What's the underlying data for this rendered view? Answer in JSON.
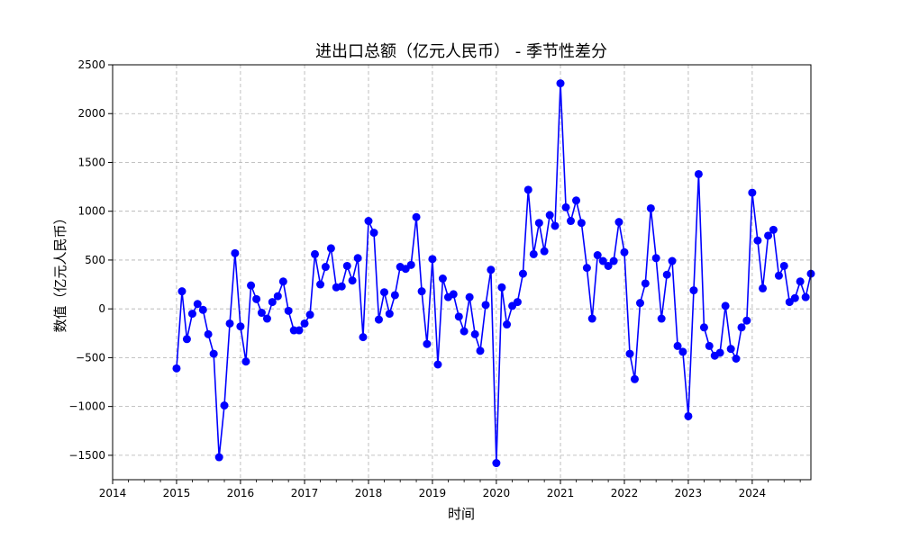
{
  "chart_data": {
    "type": "line",
    "title": "进出口总额（亿元人民币） - 季节性差分",
    "xlabel": "时间",
    "ylabel": "数值（亿元人民币）",
    "xlim": [
      "2014-01-01",
      "2024-12-01"
    ],
    "ylim": [
      -1750,
      2500
    ],
    "x_ticks": [
      "2014",
      "2015",
      "2016",
      "2017",
      "2018",
      "2019",
      "2020",
      "2021",
      "2022",
      "2023",
      "2024"
    ],
    "y_ticks": [
      -1500,
      -1000,
      -500,
      0,
      500,
      1000,
      1500,
      2000,
      2500
    ],
    "grid": true,
    "colors": {
      "series": "#0000ff",
      "grid": "#b0b0b0"
    },
    "series": [
      {
        "marker": "circle",
        "x": [
          "2015-01",
          "2015-02",
          "2015-03",
          "2015-04",
          "2015-05",
          "2015-06",
          "2015-07",
          "2015-08",
          "2015-09",
          "2015-10",
          "2015-11",
          "2015-12",
          "2016-01",
          "2016-02",
          "2016-03",
          "2016-04",
          "2016-05",
          "2016-06",
          "2016-07",
          "2016-08",
          "2016-09",
          "2016-10",
          "2016-11",
          "2016-12",
          "2017-01",
          "2017-02",
          "2017-03",
          "2017-04",
          "2017-05",
          "2017-06",
          "2017-07",
          "2017-08",
          "2017-09",
          "2017-10",
          "2017-11",
          "2017-12",
          "2018-01",
          "2018-02",
          "2018-03",
          "2018-04",
          "2018-05",
          "2018-06",
          "2018-07",
          "2018-08",
          "2018-09",
          "2018-10",
          "2018-11",
          "2018-12",
          "2019-01",
          "2019-02",
          "2019-03",
          "2019-04",
          "2019-05",
          "2019-06",
          "2019-07",
          "2019-08",
          "2019-09",
          "2019-10",
          "2019-11",
          "2019-12",
          "2020-01",
          "2020-02",
          "2020-03",
          "2020-04",
          "2020-05",
          "2020-06",
          "2020-07",
          "2020-08",
          "2020-09",
          "2020-10",
          "2020-11",
          "2020-12",
          "2021-01",
          "2021-02",
          "2021-03",
          "2021-04",
          "2021-05",
          "2021-06",
          "2021-07",
          "2021-08",
          "2021-09",
          "2021-10",
          "2021-11",
          "2021-12",
          "2022-01",
          "2022-02",
          "2022-03",
          "2022-04",
          "2022-05",
          "2022-06",
          "2022-07",
          "2022-08",
          "2022-09",
          "2022-10",
          "2022-11",
          "2022-12",
          "2023-01",
          "2023-02",
          "2023-03",
          "2023-04",
          "2023-05",
          "2023-06",
          "2023-07",
          "2023-08",
          "2023-09",
          "2023-10",
          "2023-11",
          "2023-12",
          "2024-01",
          "2024-02",
          "2024-03",
          "2024-04",
          "2024-05",
          "2024-06",
          "2024-07",
          "2024-08",
          "2024-09",
          "2024-10",
          "2024-11",
          "2024-12"
        ],
        "y": [
          -610,
          180,
          -310,
          -50,
          50,
          -10,
          -260,
          -460,
          -1520,
          -990,
          -150,
          570,
          -180,
          -540,
          240,
          100,
          -40,
          -100,
          70,
          130,
          280,
          -20,
          -220,
          -220,
          -150,
          -60,
          560,
          250,
          430,
          620,
          220,
          230,
          440,
          290,
          520,
          -290,
          900,
          780,
          -110,
          170,
          -50,
          140,
          430,
          410,
          450,
          940,
          180,
          -360,
          510,
          -570,
          310,
          120,
          150,
          -80,
          -230,
          120,
          -260,
          -430,
          40,
          400,
          -1580,
          220,
          -160,
          30,
          70,
          360,
          1220,
          560,
          880,
          590,
          960,
          850,
          2310,
          1040,
          900,
          1110,
          880,
          420,
          -100,
          550,
          490,
          440,
          490,
          890,
          580,
          -460,
          -720,
          60,
          260,
          1030,
          520,
          -100,
          350,
          490,
          -380,
          -440,
          -1100,
          190,
          1380,
          -190,
          -380,
          -480,
          -450,
          30,
          -410,
          -510,
          -190,
          -120,
          1190,
          700,
          210,
          750,
          810,
          340,
          440,
          70,
          110,
          280,
          120,
          360
        ]
      }
    ]
  }
}
